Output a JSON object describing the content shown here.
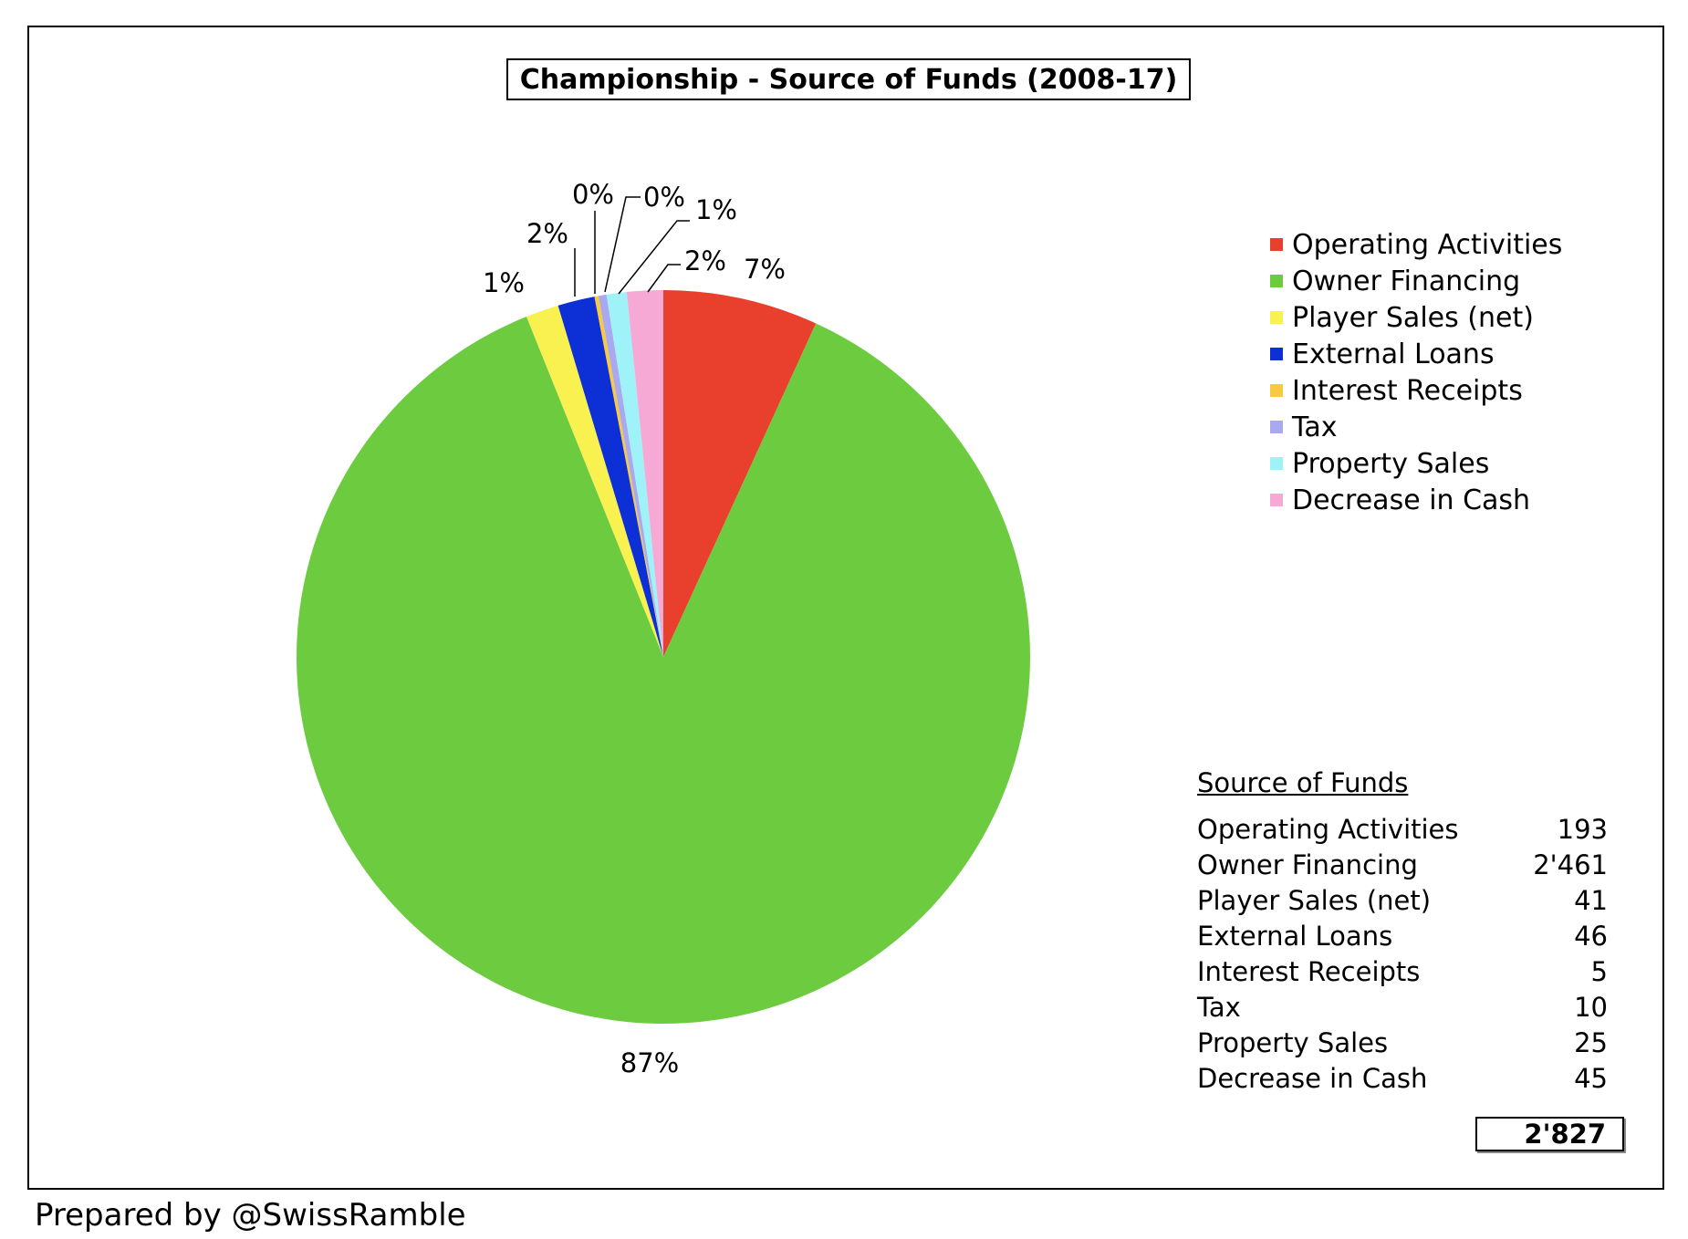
{
  "chart_data": {
    "type": "pie",
    "title": "Championship - Source of Funds (2008-17)",
    "slices": [
      {
        "name": "Operating Activities",
        "value": 193,
        "label": "7%",
        "color": "#e8402c"
      },
      {
        "name": "Owner Financing",
        "value": 2461,
        "label": "87%",
        "color": "#6ccb3f"
      },
      {
        "name": "Player Sales (net)",
        "value": 41,
        "label": "1%",
        "color": "#f8f150"
      },
      {
        "name": "External Loans",
        "value": 46,
        "label": "2%",
        "color": "#0d2fd6"
      },
      {
        "name": "Interest Receipts",
        "value": 5,
        "label": "0%",
        "color": "#f9c940"
      },
      {
        "name": "Tax",
        "value": 10,
        "label": "0%",
        "color": "#a9a9f0"
      },
      {
        "name": "Property Sales",
        "value": 25,
        "label": "1%",
        "color": "#9ff3f8"
      },
      {
        "name": "Decrease in Cash",
        "value": 45,
        "label": "2%",
        "color": "#f6a9d5"
      }
    ],
    "legend_position": "right",
    "table": {
      "title": "Source of Funds",
      "rows": [
        {
          "label": "Operating Activities",
          "value": "193"
        },
        {
          "label": "Owner Financing",
          "value": "2'461"
        },
        {
          "label": "Player Sales (net)",
          "value": "41"
        },
        {
          "label": "External Loans",
          "value": "46"
        },
        {
          "label": "Interest Receipts",
          "value": "5"
        },
        {
          "label": "Tax",
          "value": "10"
        },
        {
          "label": "Property Sales",
          "value": "25"
        },
        {
          "label": "Decrease in Cash",
          "value": "45"
        }
      ],
      "total": "2'827"
    }
  },
  "footer": "Prepared by @SwissRamble"
}
